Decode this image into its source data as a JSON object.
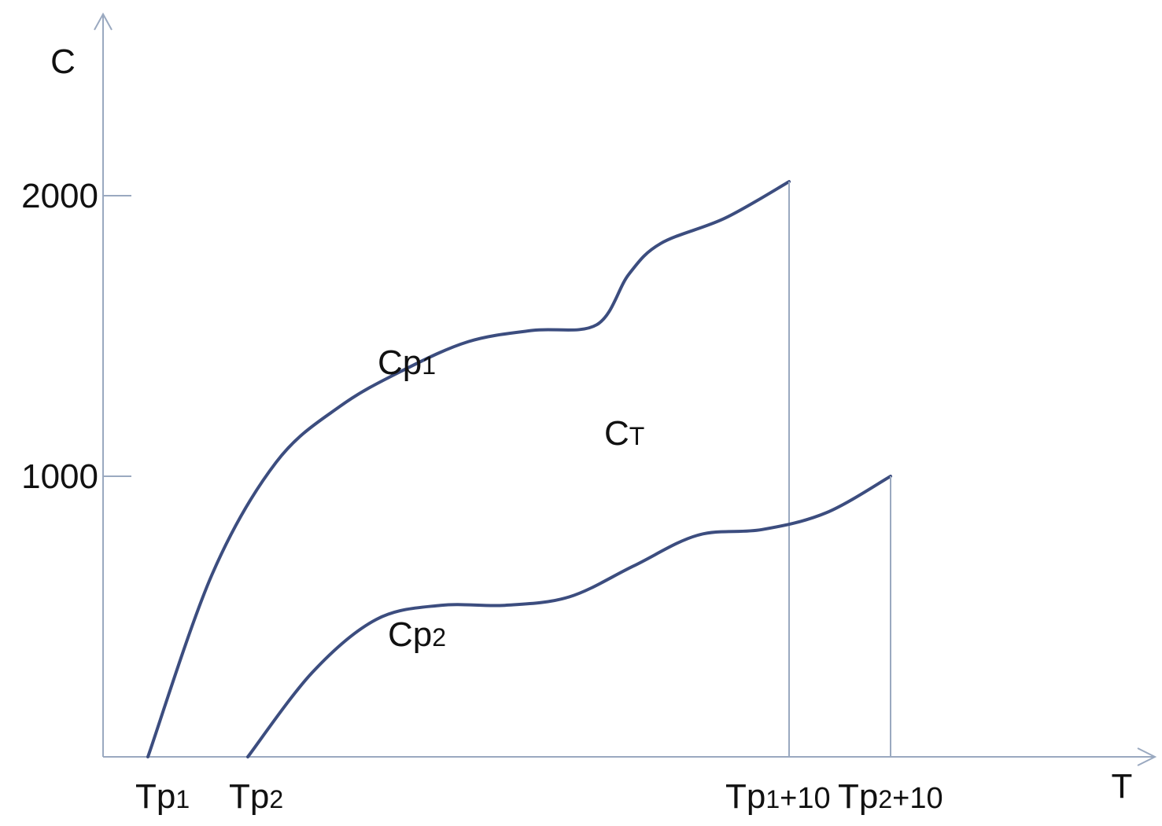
{
  "chart_data": {
    "type": "line",
    "title": "",
    "xlabel": "T",
    "ylabel": "C",
    "x_ticks": [
      {
        "main": "Tp",
        "sub": "1",
        "tail": ""
      },
      {
        "main": "Tp",
        "sub": "2",
        "tail": ""
      },
      {
        "main": "Tp",
        "sub": "1",
        "tail": "+10"
      },
      {
        "main": "Tp",
        "sub": "2",
        "tail": "+10"
      }
    ],
    "y_ticks": [
      "1000",
      "2000"
    ],
    "ylim": [
      0,
      2300
    ],
    "annotations": [
      {
        "main": "C",
        "sub": "T"
      }
    ],
    "series": [
      {
        "name": "Cp1",
        "label_main": "Cp",
        "label_sub": "1",
        "x": [
          "Tp1",
          "Tp1+10"
        ],
        "points": [
          [
            0.0,
            0
          ],
          [
            0.1,
            650
          ],
          [
            0.2,
            1050
          ],
          [
            0.3,
            1250
          ],
          [
            0.4,
            1380
          ],
          [
            0.5,
            1480
          ],
          [
            0.6,
            1520
          ],
          [
            0.7,
            1540
          ],
          [
            0.75,
            1720
          ],
          [
            0.8,
            1830
          ],
          [
            0.9,
            1920
          ],
          [
            1.0,
            2050
          ]
        ]
      },
      {
        "name": "Cp2",
        "label_main": "Cp",
        "label_sub": "2",
        "x": [
          "Tp2",
          "Tp2+10"
        ],
        "points": [
          [
            0.0,
            0
          ],
          [
            0.1,
            300
          ],
          [
            0.2,
            490
          ],
          [
            0.3,
            540
          ],
          [
            0.4,
            540
          ],
          [
            0.5,
            570
          ],
          [
            0.6,
            680
          ],
          [
            0.7,
            790
          ],
          [
            0.8,
            810
          ],
          [
            0.9,
            870
          ],
          [
            1.0,
            1000
          ]
        ]
      }
    ],
    "legend": "none",
    "grid": false
  }
}
